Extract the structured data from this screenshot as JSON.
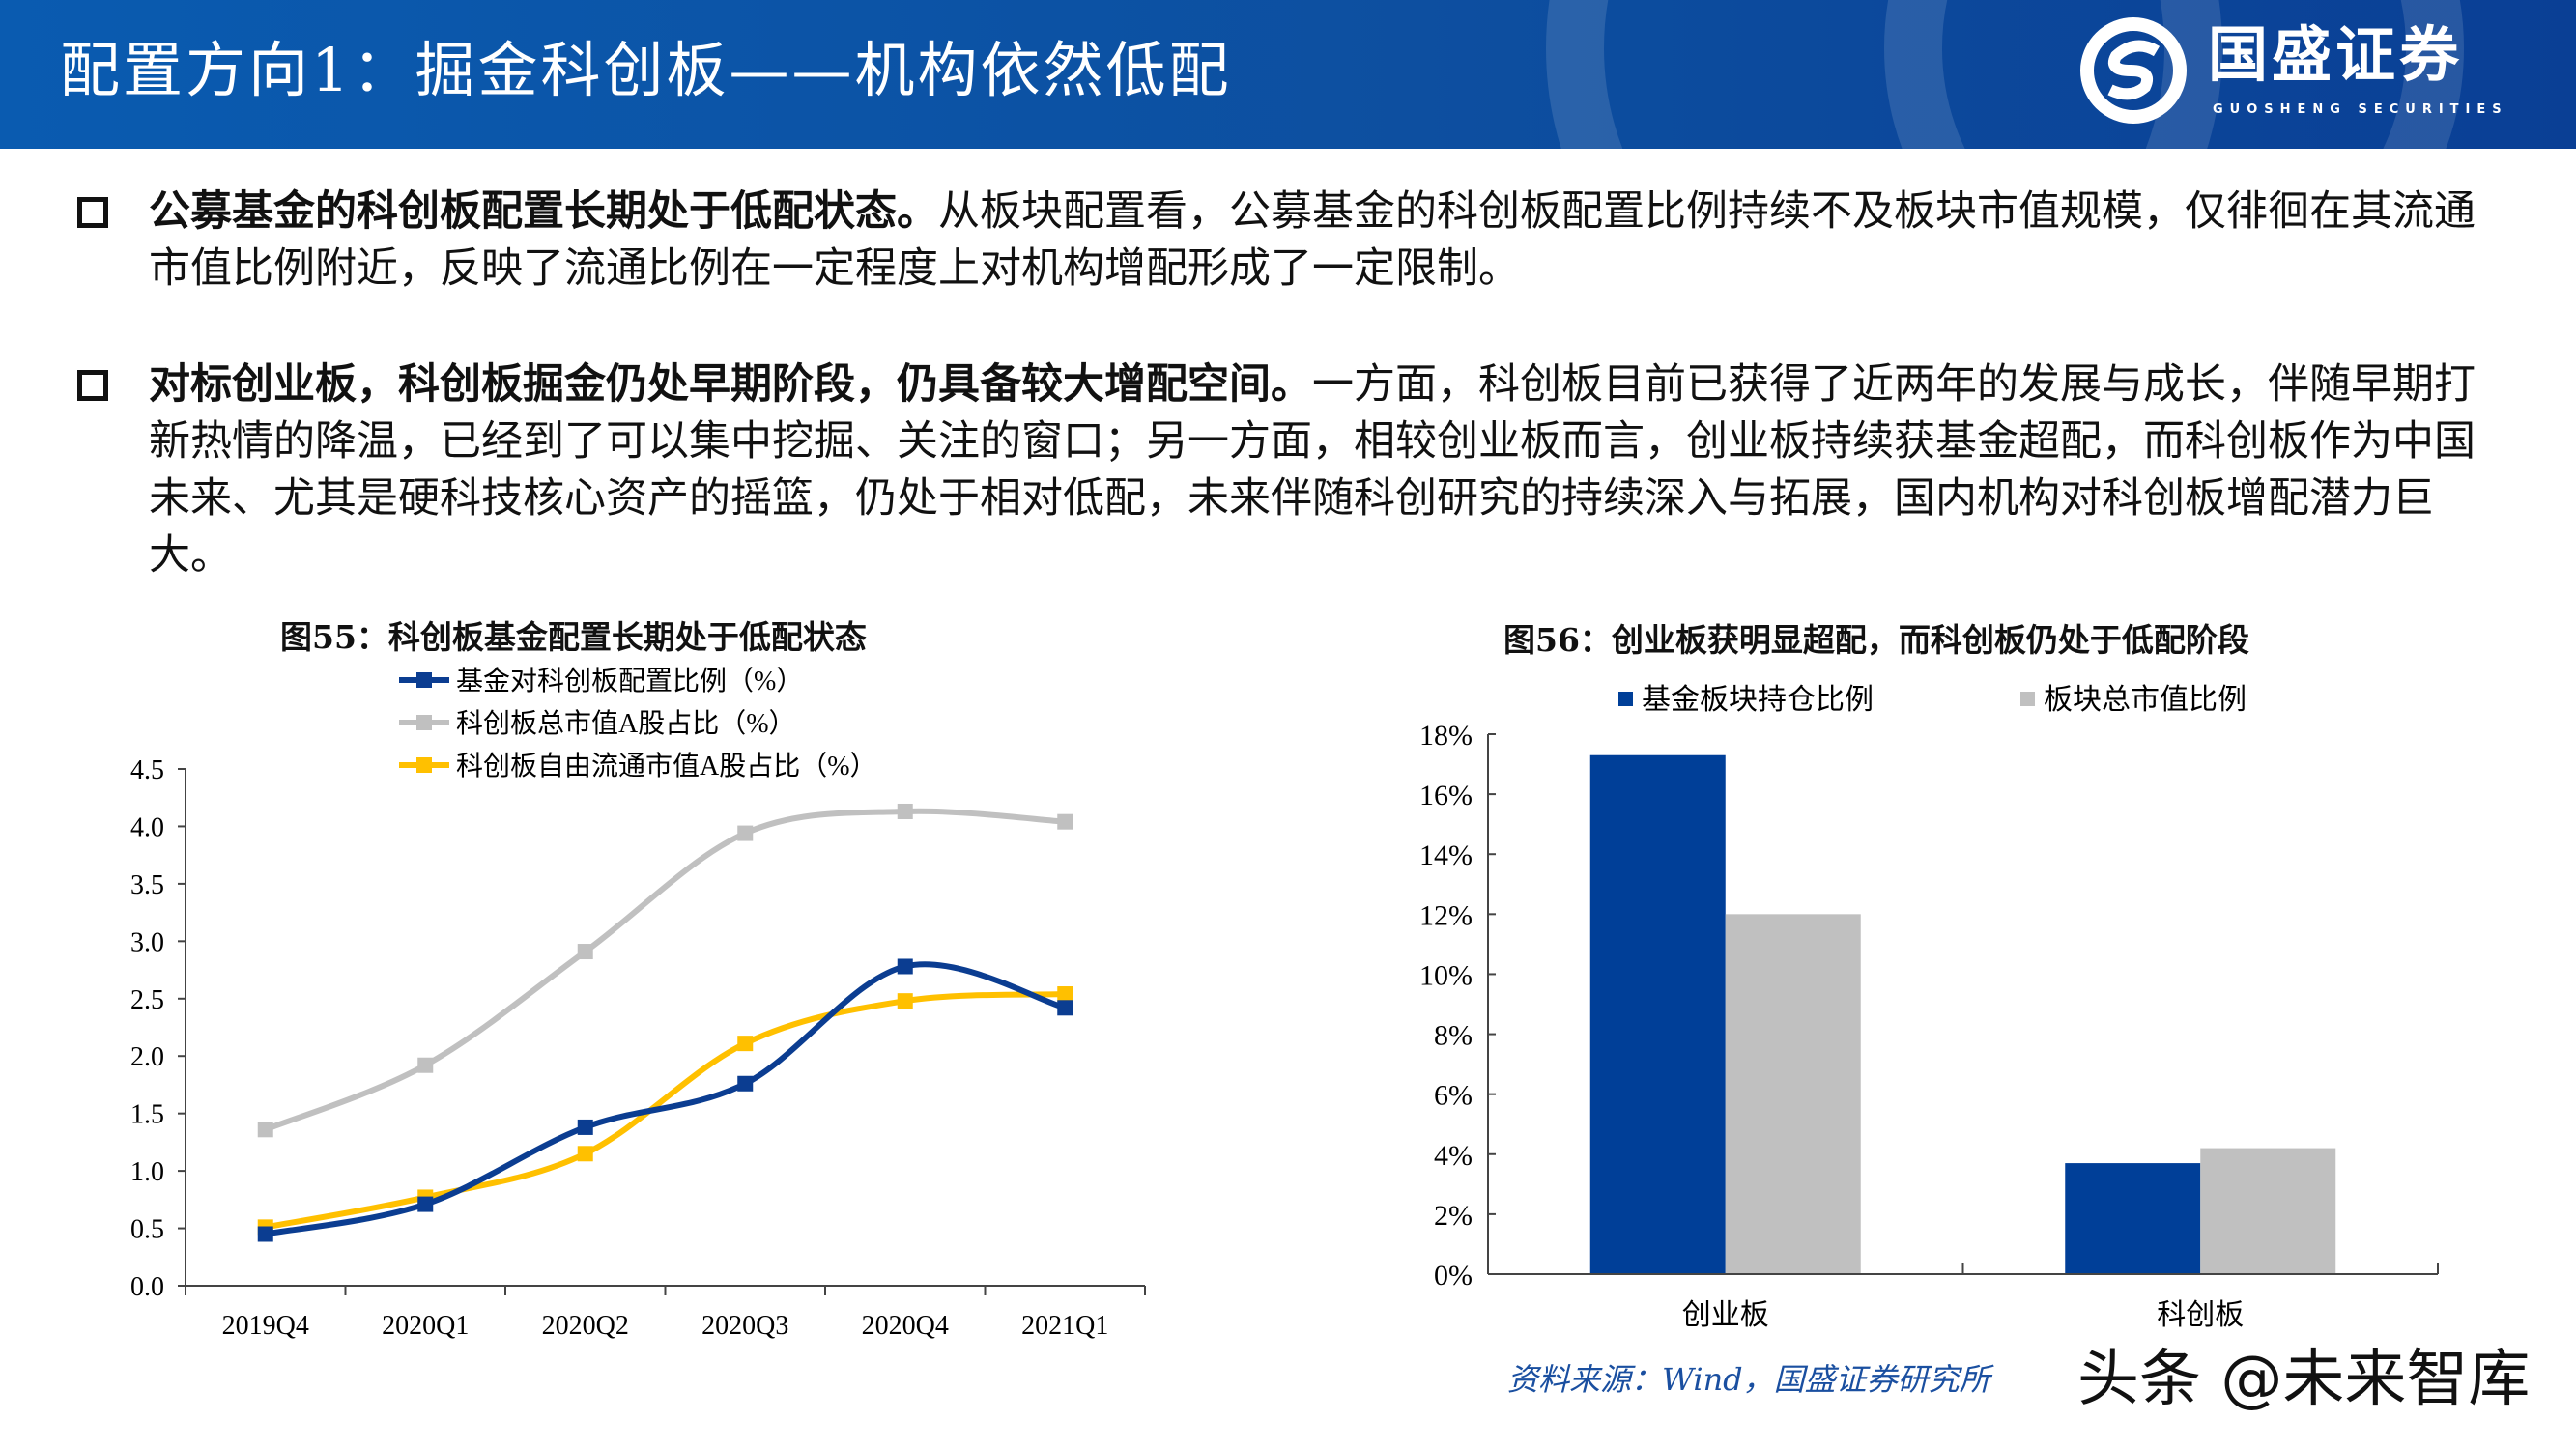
{
  "header": {
    "title": "配置方向1：掘金科创板——机构依然低配",
    "logo_text": "国盛证券",
    "logo_subtext": "GUOSHENG SECURITIES",
    "background_color": "#0d4fa0"
  },
  "bullets": [
    {
      "bold": "公募基金的科创板配置长期处于低配状态。",
      "text": "从板块配置看，公募基金的科创板配置比例持续不及板块市值规模，仅徘徊在其流通市值比例附近，反映了流通比例在一定程度上对机构增配形成了一定限制。"
    },
    {
      "bold": "对标创业板，科创板掘金仍处早期阶段，仍具备较大增配空间。",
      "text": "一方面，科创板目前已获得了近两年的发展与成长，伴随早期打新热情的降温，已经到了可以集中挖掘、关注的窗口；另一方面，相较创业板而言，创业板持续获基金超配，而科创板作为中国未来、尤其是硬科技核心资产的摇篮，仍处于相对低配，未来伴随科创研究的持续深入与拓展，国内机构对科创板增配潜力巨大。"
    }
  ],
  "source": "资料来源：Wind，国盛证券研究所",
  "watermark": "头条 @未来智库",
  "chart_data": [
    {
      "type": "line",
      "title": "图55：科创板基金配置长期处于低配状态",
      "categories": [
        "2019Q4",
        "2020Q1",
        "2020Q2",
        "2020Q3",
        "2020Q4",
        "2021Q1"
      ],
      "ylim": [
        0,
        4.5
      ],
      "yticks": [
        "0.0",
        "0.5",
        "1.0",
        "1.5",
        "2.0",
        "2.5",
        "3.0",
        "3.5",
        "4.0",
        "4.5"
      ],
      "grid": false,
      "legend_position": "top",
      "smooth": true,
      "series": [
        {
          "name": "基金对科创板配置比例（%）",
          "color": "#0b3d91",
          "values": [
            0.45,
            0.71,
            1.38,
            1.76,
            2.78,
            2.42
          ]
        },
        {
          "name": "科创板总市值A股占比（%）",
          "color": "#c0c0c0",
          "values": [
            1.36,
            1.92,
            2.91,
            3.94,
            4.13,
            4.04
          ]
        },
        {
          "name": "科创板自由流通市值A股占比（%）",
          "color": "#ffc000",
          "values": [
            0.51,
            0.77,
            1.15,
            2.11,
            2.48,
            2.54
          ]
        }
      ]
    },
    {
      "type": "bar",
      "title": "图56：创业板获明显超配，而科创板仍处于低配阶段",
      "categories": [
        "创业板",
        "科创板"
      ],
      "ylim": [
        0,
        18
      ],
      "yticks": [
        "0%",
        "2%",
        "4%",
        "6%",
        "8%",
        "10%",
        "12%",
        "14%",
        "16%",
        "18%"
      ],
      "grid": false,
      "legend_position": "top",
      "series": [
        {
          "name": "基金板块持仓比例",
          "color": "#003f98",
          "values": [
            17.3,
            3.7
          ]
        },
        {
          "name": "板块总市值比例",
          "color": "#c0c0c0",
          "values": [
            12.0,
            4.2
          ]
        }
      ]
    }
  ]
}
